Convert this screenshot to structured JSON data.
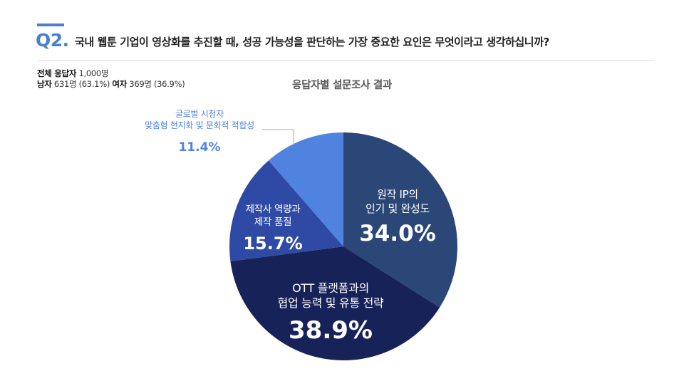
{
  "header": {
    "q_number": "Q2.",
    "question": "국내 웹툰 기업이 영상화를 추진할 때, 성공 가능성을 판단하는 가장 중요한 요인은 무엇이라고 생각하십니까?"
  },
  "respondents": {
    "total_label": "전체 응답자",
    "total_value": "1,000명",
    "male_label": "남자",
    "male_value": "631명 (63.1%)",
    "female_label": "여자",
    "female_value": "369명 (36.9%)"
  },
  "chart_data": {
    "type": "pie",
    "title": "응답자별 설문조사 결과",
    "slices": [
      {
        "label_lines": [
          "원작 IP의",
          "인기 및 완성도"
        ],
        "value": 34.0,
        "display": "34.0%",
        "color": "#2b4777"
      },
      {
        "label_lines": [
          "OTT 플랫폼과의",
          "협업 능력 및 유통 전략"
        ],
        "value": 38.9,
        "display": "38.9%",
        "color": "#172259"
      },
      {
        "label_lines": [
          "제작사 역량과",
          "제작 품질"
        ],
        "value": 15.7,
        "display": "15.7%",
        "color": "#2f4aa5"
      },
      {
        "label_lines": [
          "글로벌 시청자",
          "맞춤형 현지화 및 문화적 적합성"
        ],
        "value": 11.4,
        "display": "11.4%",
        "color": "#4f83df"
      }
    ]
  }
}
